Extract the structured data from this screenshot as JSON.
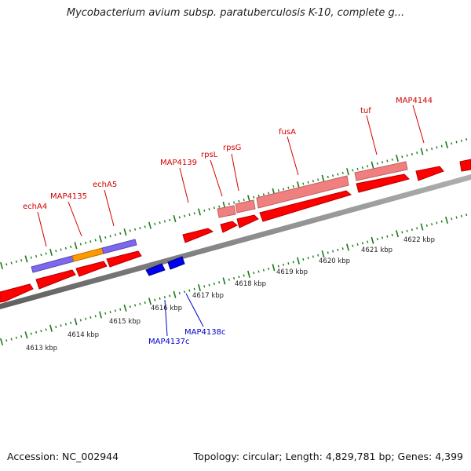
{
  "title": "Mycobacterium avium subsp. paratuberculosis K-10, complete g...",
  "footer": {
    "accession": "Accession: NC_002944",
    "topology": "Topology: circular; Length: 4,829,781 bp; Genes: 4,399"
  },
  "colors": {
    "gene_forward": "#ff0000",
    "gene_reverse": "#0000ee",
    "cds_pink": "#f08080",
    "cds_purple": "#7b68ee",
    "cds_orange": "#ff9900",
    "backbone": "#8c8c8c",
    "ticks": "#1a7a1a",
    "label_red": "#d40000",
    "label_blue": "#0000cc"
  },
  "scale_labels": [
    "4613 kbp",
    "4614 kbp",
    "4615 kbp",
    "4616 kbp",
    "4617 kbp",
    "4618 kbp",
    "4619 kbp",
    "4620 kbp",
    "4621 kbp",
    "4622 kbp"
  ],
  "forward_genes": [
    "echA4",
    "MAP4135",
    "echA5",
    "MAP4139",
    "rpsL",
    "rpsG",
    "fusA",
    "tuf",
    "MAP4144"
  ],
  "reverse_genes": [
    "MAP4137c",
    "MAP4138c"
  ]
}
